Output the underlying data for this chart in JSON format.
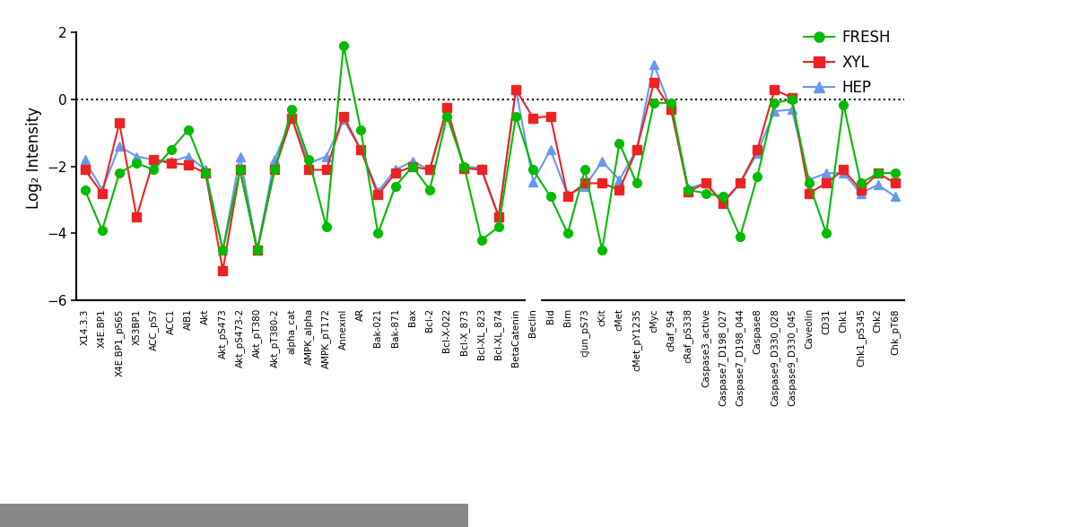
{
  "categories": [
    "X14.3.3",
    "X4E.BP1",
    "X4E.BP1_pS65",
    "X53BP1",
    "ACC_pS7",
    "ACC1",
    "AIB1",
    "Akt",
    "Akt_pS473",
    "Akt_pS473-2",
    "Akt_pT380",
    "Akt_pT380-2",
    "alpha_cat",
    "AMPK_alpha",
    "AMPK_pT172",
    "AnnexinI",
    "AR",
    "Bak-021",
    "Bak-871",
    "Bax",
    "Bcl-2",
    "Bcl-X-022",
    "Bcl-X_873",
    "Bcl-XL_823",
    "Bcl-XL_874",
    "BetaCatenin",
    "Beclin",
    "Bid",
    "Bim",
    "cJun_pS73",
    "cKit",
    "cMet",
    "cMet_pY1235",
    "cMyc",
    "cRaf_954",
    "cRaf_pS338",
    "Caspase3_active",
    "Caspase7_D198_027",
    "Caspase7_D198_044",
    "Caspase8",
    "Caspase9_D330_028",
    "Caspase9_D330_045",
    "Caveolin",
    "CD31",
    "Chk1",
    "Chk1_pS345",
    "Chk2",
    "Chk_pT68"
  ],
  "fresh": [
    -2.7,
    -3.9,
    -2.2,
    -1.9,
    -2.1,
    -1.5,
    -0.9,
    -2.2,
    -4.5,
    -2.1,
    -4.5,
    -2.1,
    -0.3,
    -1.8,
    -3.8,
    1.6,
    -0.9,
    -4.0,
    -2.6,
    -2.0,
    -2.7,
    -0.5,
    -2.0,
    -4.2,
    -3.8,
    -0.5,
    -2.1,
    -2.9,
    -4.0,
    -2.1,
    -4.5,
    -1.3,
    -2.5,
    -0.1,
    -0.1,
    -2.7,
    -2.8,
    -2.9,
    -4.1,
    -2.3,
    -0.1,
    0.0,
    -2.5,
    -4.0,
    -0.15,
    -2.5,
    -2.2,
    -2.2
  ],
  "xyl": [
    -2.1,
    -2.8,
    -0.7,
    -3.5,
    -1.8,
    -1.9,
    -1.95,
    -2.2,
    -5.1,
    -2.1,
    -4.5,
    -2.1,
    -0.55,
    -2.1,
    -2.1,
    -0.5,
    -1.5,
    -2.85,
    -2.2,
    -2.0,
    -2.1,
    -0.25,
    -2.05,
    -2.1,
    -3.5,
    0.3,
    -0.55,
    -0.5,
    -2.9,
    -2.5,
    -2.5,
    -2.7,
    -1.5,
    0.5,
    -0.3,
    -2.75,
    -2.5,
    -3.1,
    -2.5,
    -1.5,
    0.3,
    0.05,
    -2.8,
    -2.5,
    -2.1,
    -2.7,
    -2.2,
    -2.5
  ],
  "hep": [
    -1.8,
    -2.7,
    -1.4,
    -1.7,
    -1.8,
    -1.85,
    -1.7,
    -2.1,
    -4.5,
    -1.7,
    -4.5,
    -1.8,
    -0.55,
    -1.9,
    -1.7,
    -0.6,
    -1.5,
    -2.75,
    -2.1,
    -1.85,
    -2.1,
    -0.35,
    -2.0,
    -2.05,
    -3.5,
    0.3,
    -2.45,
    -1.5,
    -2.85,
    -2.6,
    -1.85,
    -2.4,
    -1.5,
    1.05,
    -0.3,
    -2.65,
    -2.5,
    -3.05,
    -2.5,
    -1.6,
    -0.35,
    -0.3,
    -2.4,
    -2.2,
    -2.2,
    -2.8,
    -2.55,
    -2.9
  ],
  "fresh_color": "#00bb00",
  "xyl_color": "#ee2222",
  "hep_color": "#6699ee",
  "ylabel": "Log₂ Intensity",
  "ylim": [
    -6,
    2.5
  ],
  "yticks": [
    -6,
    -4,
    -2,
    0,
    2
  ],
  "split_after": 26
}
